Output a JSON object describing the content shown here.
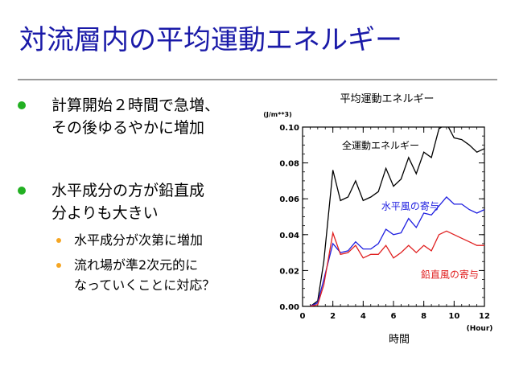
{
  "slide": {
    "title": "対流層内の平均運動エネルギー",
    "bullets": [
      {
        "lines": [
          "計算開始２時間で急増、",
          "その後ゆるやかに増加"
        ]
      },
      {
        "lines": [
          "水平成分の方が鉛直成",
          "分よりも大きい"
        ]
      }
    ],
    "sub_bullets": [
      {
        "lines": [
          "水平成分が次第に増加"
        ]
      },
      {
        "lines": [
          "流れ場が準2次元的に",
          "なっていくことに対応？"
        ]
      }
    ]
  },
  "colors": {
    "title": "#1a1aa8",
    "bullet": "#22b022",
    "sub_bullet": "#f5a623",
    "rule": "#9a9a9a"
  },
  "chart_data": {
    "type": "line",
    "title": "平均運動エネルギー",
    "xlabel": "時間",
    "xunit": "(Hour)",
    "yunit": "(J/m**3)",
    "xlim": [
      0,
      12
    ],
    "ylim": [
      0,
      0.1
    ],
    "xticks": [
      0,
      2,
      4,
      6,
      8,
      10,
      12
    ],
    "xtick_labels": [
      "0",
      "2",
      "4",
      "6",
      "8",
      "10",
      "12"
    ],
    "yticks": [
      0,
      0.02,
      0.04,
      0.06,
      0.08,
      0.1
    ],
    "ytick_labels": [
      "0.00",
      "0.02",
      "0.04",
      "0.06",
      "0.08",
      "0.10"
    ],
    "grid": false,
    "series": [
      {
        "name": "全運動エネルギー",
        "color": "#000000",
        "label_at": [
          2.6,
          0.088
        ],
        "x": [
          0.5,
          1,
          1.4,
          2,
          2.5,
          3,
          3.5,
          4,
          4.5,
          5,
          5.5,
          6,
          6.5,
          7,
          7.5,
          8,
          8.5,
          9,
          9.5,
          10,
          10.5,
          11,
          11.5,
          12
        ],
        "y": [
          0.0,
          0.003,
          0.025,
          0.076,
          0.059,
          0.061,
          0.07,
          0.059,
          0.061,
          0.064,
          0.077,
          0.067,
          0.071,
          0.083,
          0.074,
          0.086,
          0.083,
          0.099,
          0.102,
          0.094,
          0.093,
          0.09,
          0.086,
          0.088
        ]
      },
      {
        "name": "水平風の寄与",
        "color": "#1f1fe0",
        "label_at": [
          5.2,
          0.054
        ],
        "x": [
          0.5,
          1,
          1.4,
          2,
          2.5,
          3,
          3.5,
          4,
          4.5,
          5,
          5.5,
          6,
          6.5,
          7,
          7.5,
          8,
          8.5,
          9,
          9.5,
          10,
          10.5,
          11,
          11.5,
          12
        ],
        "y": [
          0.0,
          0.002,
          0.015,
          0.035,
          0.03,
          0.031,
          0.036,
          0.032,
          0.032,
          0.035,
          0.043,
          0.04,
          0.041,
          0.049,
          0.044,
          0.052,
          0.051,
          0.056,
          0.061,
          0.057,
          0.057,
          0.054,
          0.052,
          0.054
        ]
      },
      {
        "name": "鉛直風の寄与",
        "color": "#e02020",
        "label_at": [
          7.8,
          0.016
        ],
        "x": [
          0.5,
          1,
          1.4,
          2,
          2.5,
          3,
          3.5,
          4,
          4.5,
          5,
          5.5,
          6,
          6.5,
          7,
          7.5,
          8,
          8.5,
          9,
          9.5,
          10,
          10.5,
          11,
          11.5,
          12
        ],
        "y": [
          0.0,
          0.001,
          0.012,
          0.041,
          0.029,
          0.03,
          0.034,
          0.027,
          0.029,
          0.029,
          0.034,
          0.027,
          0.03,
          0.034,
          0.03,
          0.034,
          0.031,
          0.04,
          0.042,
          0.04,
          0.038,
          0.036,
          0.034,
          0.034
        ]
      }
    ]
  }
}
